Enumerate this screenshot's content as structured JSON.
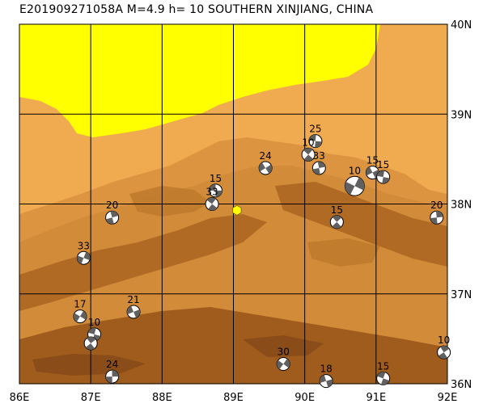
{
  "title": "E201909271058A  M=4.9  h=  10 SOUTHERN XINJIANG, CHINA",
  "epicenter": {
    "lon": 89.05,
    "lat": 37.93,
    "color": "#ffff00"
  },
  "map": {
    "lon_range": [
      86,
      92
    ],
    "lat_range": [
      36,
      40
    ],
    "lon_ticks": [
      "86E",
      "87E",
      "88E",
      "89E",
      "90E",
      "91E",
      "92E"
    ],
    "lat_ticks": [
      "40N",
      "39N",
      "38N",
      "37N",
      "36N"
    ],
    "colors": {
      "desert": "#ffff00",
      "low": "#f0aa50",
      "mid": "#dc9440",
      "high": "#c87c30",
      "mountain": "#a86420",
      "peak": "#8a4c18",
      "grid": "#000000"
    }
  },
  "mechanisms": [
    {
      "lon": 88.75,
      "lat": 38.15,
      "depth": "15"
    },
    {
      "lon": 88.7,
      "lat": 38.0,
      "depth": "33"
    },
    {
      "lon": 87.3,
      "lat": 37.85,
      "depth": "20"
    },
    {
      "lon": 86.9,
      "lat": 37.4,
      "depth": "33"
    },
    {
      "lon": 89.45,
      "lat": 38.4,
      "depth": "24"
    },
    {
      "lon": 90.15,
      "lat": 38.7,
      "depth": "25"
    },
    {
      "lon": 90.05,
      "lat": 38.55,
      "depth": "10"
    },
    {
      "lon": 90.2,
      "lat": 38.4,
      "depth": "33"
    },
    {
      "lon": 90.7,
      "lat": 38.2,
      "depth": "10"
    },
    {
      "lon": 90.95,
      "lat": 38.35,
      "depth": "15"
    },
    {
      "lon": 91.1,
      "lat": 38.3,
      "depth": "15"
    },
    {
      "lon": 90.45,
      "lat": 37.8,
      "depth": "15"
    },
    {
      "lon": 91.85,
      "lat": 37.85,
      "depth": "20"
    },
    {
      "lon": 86.85,
      "lat": 36.75,
      "depth": "17"
    },
    {
      "lon": 87.6,
      "lat": 36.8,
      "depth": "21"
    },
    {
      "lon": 87.05,
      "lat": 36.55,
      "depth": "10"
    },
    {
      "lon": 87.0,
      "lat": 36.45,
      "depth": ""
    },
    {
      "lon": 87.3,
      "lat": 36.08,
      "depth": "24"
    },
    {
      "lon": 89.7,
      "lat": 36.22,
      "depth": "30"
    },
    {
      "lon": 90.3,
      "lat": 36.03,
      "depth": "18"
    },
    {
      "lon": 91.1,
      "lat": 36.06,
      "depth": "15"
    },
    {
      "lon": 91.95,
      "lat": 36.35,
      "depth": "10"
    }
  ]
}
